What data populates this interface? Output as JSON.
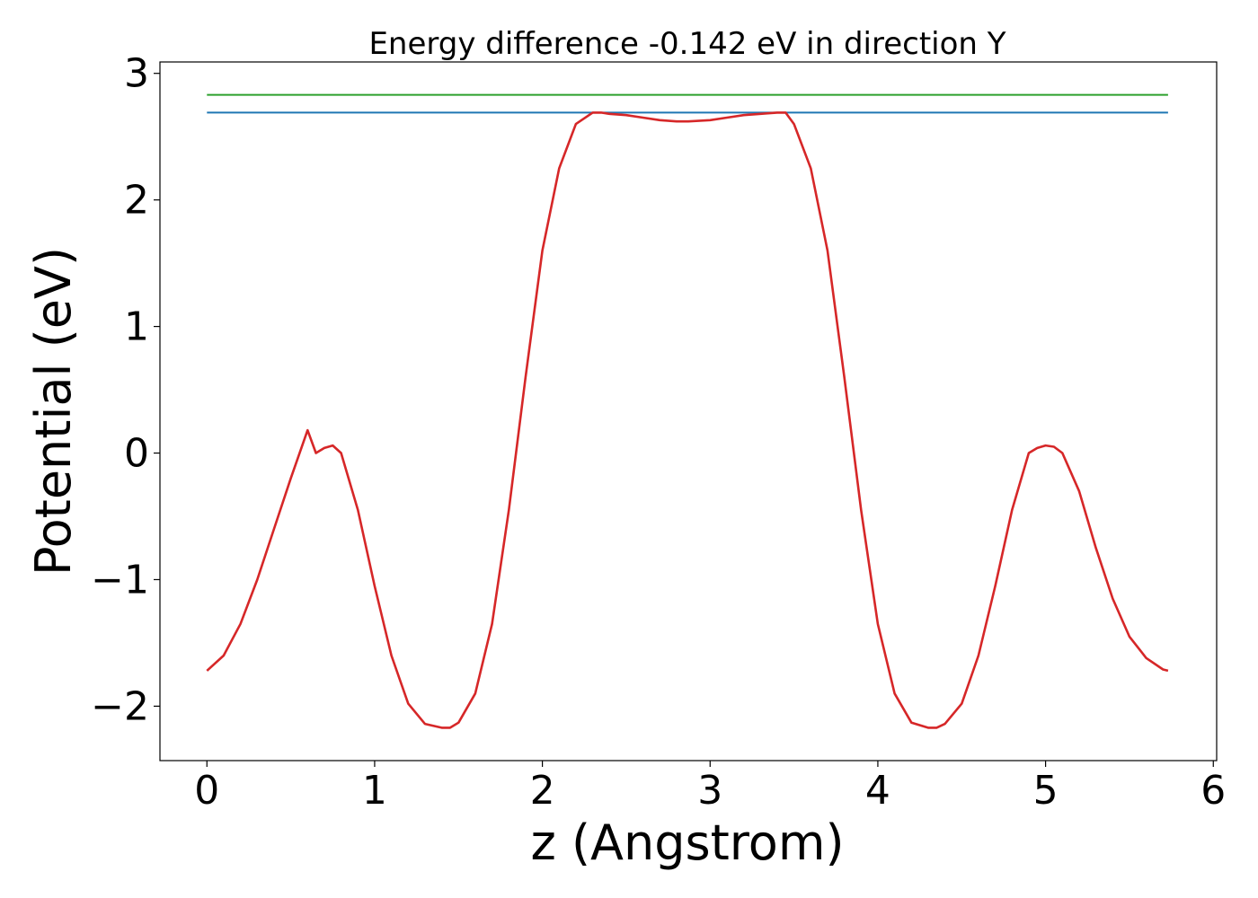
{
  "chart_data": {
    "type": "line",
    "title": "Energy difference -0.142 eV in direction Y",
    "xlabel": "z (Angstrom)",
    "ylabel": "Potential (eV)",
    "xlim": [
      -0.28,
      6.02
    ],
    "ylim": [
      -2.43,
      3.09
    ],
    "xticks": [
      0,
      1,
      2,
      3,
      4,
      5,
      6
    ],
    "yticks": [
      -2,
      -1,
      0,
      1,
      2,
      3
    ],
    "xtick_labels": [
      "0",
      "1",
      "2",
      "3",
      "4",
      "5",
      "6"
    ],
    "ytick_labels": [
      "−2",
      "−1",
      "0",
      "1",
      "2",
      "3"
    ],
    "grid": false,
    "legend": "none",
    "series": [
      {
        "color": "#d62728",
        "x": [
          0.0,
          0.1,
          0.2,
          0.3,
          0.4,
          0.5,
          0.6,
          0.65,
          0.7,
          0.75,
          0.8,
          0.9,
          1.0,
          1.1,
          1.2,
          1.3,
          1.4,
          1.45,
          1.5,
          1.6,
          1.7,
          1.8,
          1.9,
          2.0,
          2.1,
          2.2,
          2.3,
          2.35,
          2.4,
          2.5,
          2.6,
          2.7,
          2.8,
          2.87,
          3.0,
          3.1,
          3.2,
          3.3,
          3.4,
          3.45,
          3.5,
          3.6,
          3.7,
          3.8,
          3.9,
          4.0,
          4.1,
          4.2,
          4.3,
          4.35,
          4.4,
          4.5,
          4.6,
          4.7,
          4.8,
          4.9,
          4.95,
          5.0,
          5.05,
          5.1,
          5.2,
          5.3,
          5.4,
          5.5,
          5.6,
          5.7,
          5.73
        ],
        "y": [
          -1.72,
          -1.6,
          -1.35,
          -1.0,
          -0.6,
          -0.2,
          0.18,
          0.0,
          0.04,
          0.06,
          0.0,
          -0.45,
          -1.05,
          -1.6,
          -1.98,
          -2.14,
          -2.17,
          -2.17,
          -2.13,
          -1.9,
          -1.35,
          -0.45,
          0.6,
          1.6,
          2.25,
          2.6,
          2.69,
          2.69,
          2.68,
          2.67,
          2.65,
          2.63,
          2.62,
          2.62,
          2.63,
          2.65,
          2.67,
          2.68,
          2.69,
          2.69,
          2.6,
          2.25,
          1.6,
          0.6,
          -0.45,
          -1.35,
          -1.9,
          -2.13,
          -2.17,
          -2.17,
          -2.14,
          -1.98,
          -1.6,
          -1.05,
          -0.45,
          0.0,
          0.04,
          0.06,
          0.05,
          0.0,
          -0.3,
          -0.75,
          -1.15,
          -1.45,
          -1.62,
          -1.71,
          -1.72
        ]
      },
      {
        "color": "#1f77b4",
        "x": [
          0.0,
          5.73
        ],
        "y": [
          2.69,
          2.69
        ]
      },
      {
        "color": "#2ca02c",
        "x": [
          0.0,
          5.73
        ],
        "y": [
          2.83,
          2.83
        ]
      }
    ]
  }
}
